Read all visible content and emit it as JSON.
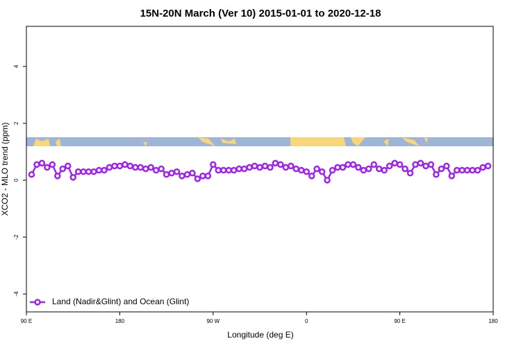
{
  "chart_data": {
    "type": "line",
    "title": "15N-20N March (Ver 10)   2015-01-01 to 2020-12-18",
    "x_label": "Longitude (deg E)",
    "y_label": "XCO2 - MLO trend (ppm)",
    "xlim": [
      90,
      540
    ],
    "ylim": [
      -4.63,
      5.41
    ],
    "xticks": [
      {
        "value": 90,
        "label": "90 E"
      },
      180,
      {
        "value": 270,
        "label": "90 W"
      },
      {
        "value": 360,
        "label": "0"
      },
      {
        "value": 450,
        "label": "90 E"
      },
      {
        "value": 540,
        "label": "180"
      }
    ],
    "yticks": [
      -4,
      -2,
      0,
      2,
      4
    ],
    "legend": "bottom-left",
    "x": [
      95,
      100,
      105,
      110,
      115,
      120,
      125,
      130,
      135,
      140,
      145,
      150,
      155,
      160,
      165,
      170,
      175,
      180,
      185,
      190,
      195,
      200,
      205,
      210,
      215,
      220,
      225,
      230,
      235,
      240,
      245,
      250,
      255,
      260,
      265,
      270,
      275,
      280,
      285,
      290,
      295,
      300,
      305,
      310,
      315,
      320,
      325,
      330,
      335,
      340,
      345,
      350,
      355,
      360,
      365,
      370,
      375,
      380,
      385,
      390,
      395,
      400,
      405,
      410,
      415,
      420,
      425,
      430,
      435,
      440,
      445,
      450,
      455,
      460,
      465,
      470,
      475,
      480,
      485,
      490,
      495,
      500,
      505,
      510,
      515,
      520,
      525,
      530,
      535
    ],
    "series": [
      {
        "name": "Land (Nadir&Glint) and Ocean (Glint)",
        "color": "#a020f0",
        "values": [
          0.2,
          0.55,
          0.6,
          0.45,
          0.55,
          0.15,
          0.4,
          0.5,
          0.1,
          0.3,
          0.3,
          0.3,
          0.3,
          0.35,
          0.35,
          0.45,
          0.5,
          0.5,
          0.55,
          0.5,
          0.45,
          0.45,
          0.4,
          0.45,
          0.35,
          0.4,
          0.2,
          0.25,
          0.3,
          0.15,
          0.2,
          0.25,
          0.05,
          0.15,
          0.15,
          0.55,
          0.35,
          0.35,
          0.35,
          0.35,
          0.4,
          0.4,
          0.45,
          0.5,
          0.45,
          0.5,
          0.45,
          0.6,
          0.55,
          0.45,
          0.5,
          0.4,
          0.35,
          0.3,
          0.15,
          0.4,
          0.3,
          0,
          0.35,
          0.45,
          0.45,
          0.55,
          0.55,
          0.45,
          0.35,
          0.4,
          0.55,
          0.4,
          0.35,
          0.5,
          0.6,
          0.55,
          0.4,
          0.25,
          0.55,
          0.6,
          0.5,
          0.55,
          0.2,
          0.4,
          0.5,
          0.15,
          0.35,
          0.35,
          0.35,
          0.35,
          0.35,
          0.45,
          0.5
        ]
      }
    ]
  }
}
